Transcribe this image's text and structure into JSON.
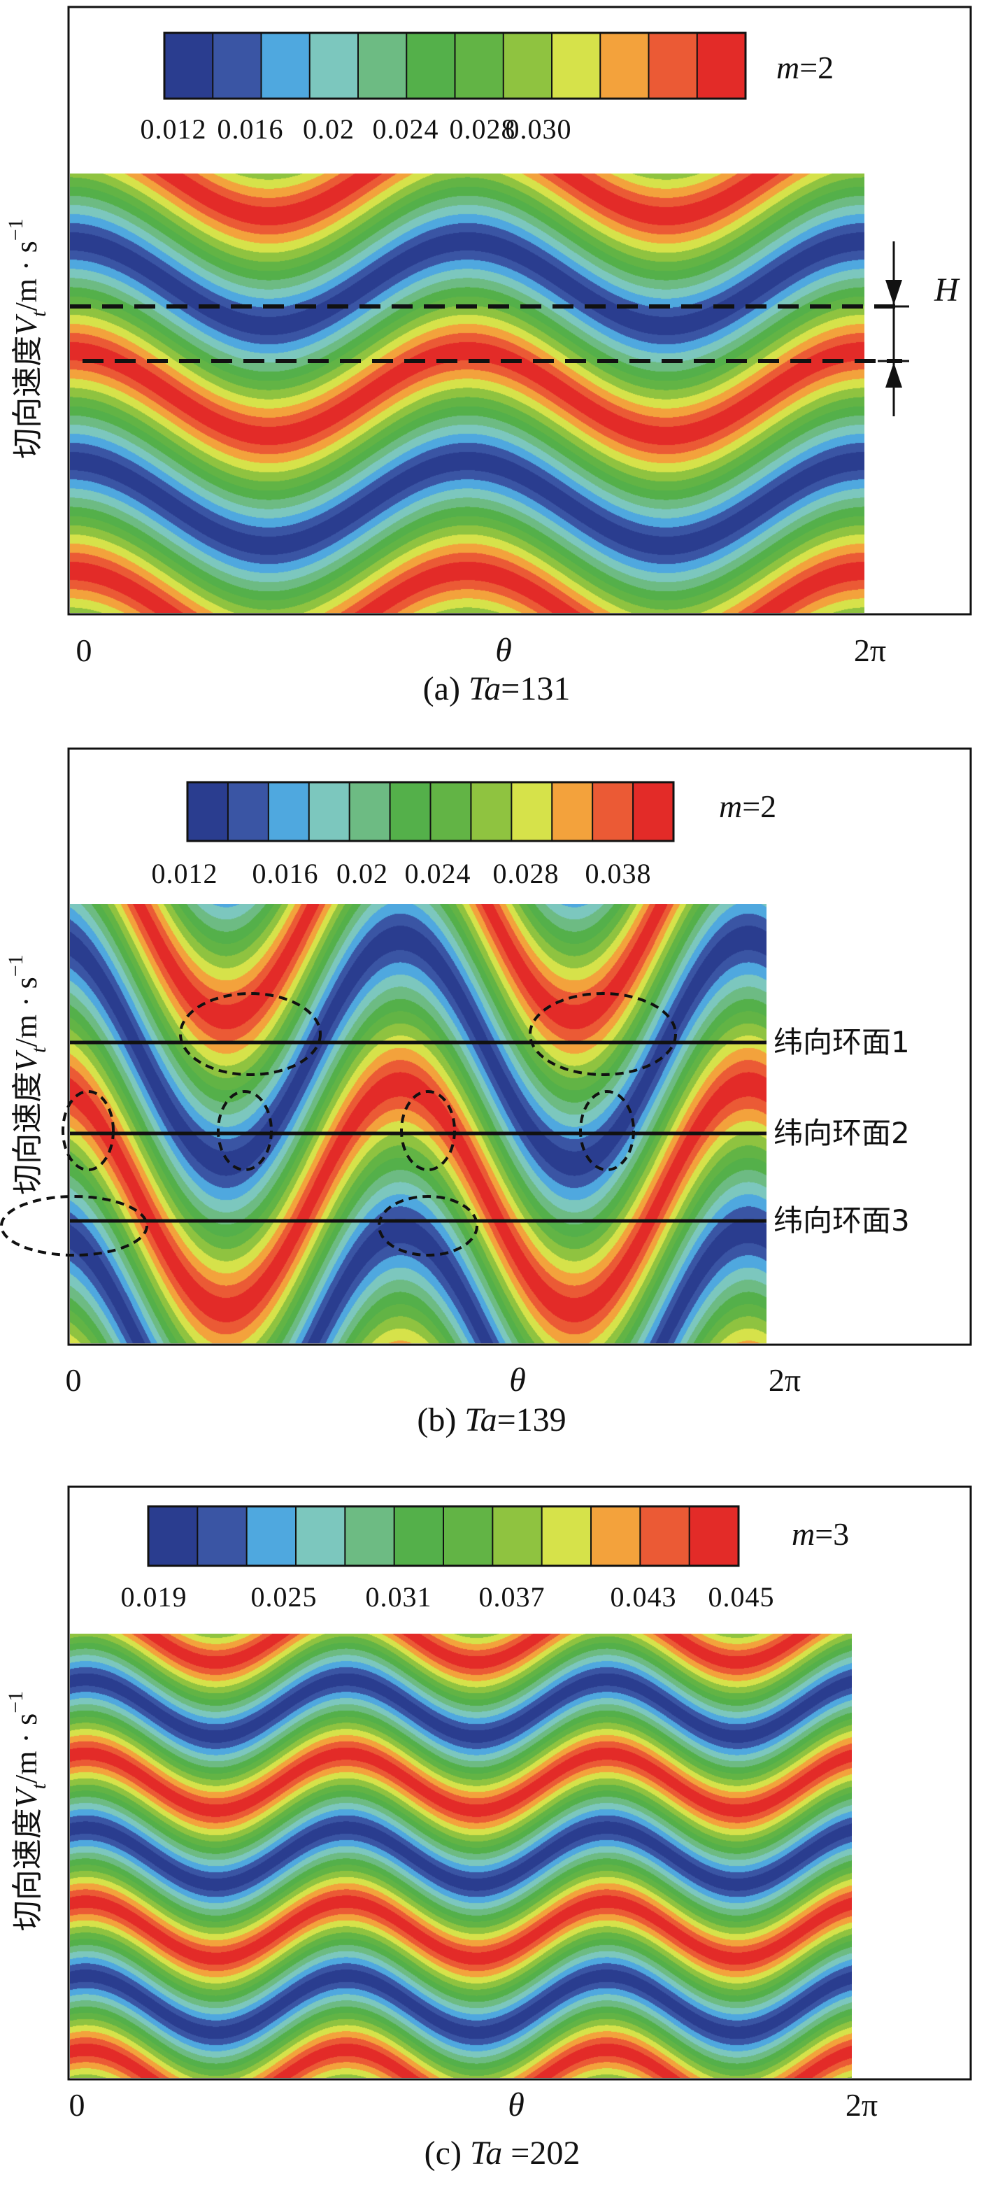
{
  "colors": [
    "#2a3d8f",
    "#3a55a4",
    "#4fa8df",
    "#7cc7be",
    "#6dbb83",
    "#54b04a",
    "#62b445",
    "#8fc340",
    "#d6e24a",
    "#f3a23c",
    "#eb5a35",
    "#e32b28"
  ],
  "chart_data": [
    {
      "type": "heatmap",
      "panel": "a",
      "title": "m=2",
      "mode_label": "m=2",
      "caption_prefix": "(a) ",
      "caption_ta": "Ta",
      "caption_rest": "=131",
      "colorbar": {
        "min": 0.012,
        "max": 0.03,
        "tick_labels": [
          "0.012",
          "0.016",
          "0.02",
          "0.024",
          "0.028",
          "0.030"
        ]
      },
      "ylabel": "切向速度V_t/m·s⁻¹",
      "xlabel": "θ",
      "x_tick_labels": [
        "0",
        "2π"
      ],
      "wave": {
        "azimuthal_mode": 2,
        "bands": 2.0,
        "amplitude": 0.55,
        "phase": 1.5708
      },
      "annotations": {
        "height_label": "H"
      }
    },
    {
      "type": "heatmap",
      "panel": "b",
      "title": "m=2",
      "mode_label": "m=2",
      "caption_prefix": "(b) ",
      "caption_ta": "Ta",
      "caption_rest": "=139",
      "colorbar": {
        "min": 0.012,
        "max": 0.038,
        "tick_labels": [
          "0.012",
          "0.016",
          "0.02",
          "0.024",
          "0.028",
          "0.038"
        ]
      },
      "ylabel": "切向速度V_t/m·s⁻¹",
      "xlabel": "θ",
      "x_tick_labels": [
        "0",
        "2π"
      ],
      "wave": {
        "azimuthal_mode": 2,
        "bands": 1.5,
        "amplitude": 1.1,
        "phase": 1.9
      },
      "annotations": {
        "line_labels": [
          "纬向环面1",
          "纬向环面2",
          "纬向环面3"
        ]
      }
    },
    {
      "type": "heatmap",
      "panel": "c",
      "title": "m=3",
      "mode_label": "m=3",
      "caption_prefix": "(c) ",
      "caption_ta": "Ta",
      "caption_rest": " =202",
      "colorbar": {
        "min": 0.019,
        "max": 0.045,
        "tick_labels": [
          "0.019",
          "0.025",
          "0.031",
          "0.037",
          "0.043",
          "0.045"
        ]
      },
      "ylabel": "切向速度V_t/m·s⁻¹",
      "xlabel": "θ",
      "x_tick_labels": [
        "0",
        "2π"
      ],
      "wave": {
        "azimuthal_mode": 3,
        "bands": 3.0,
        "amplitude": 0.55,
        "phase": 1.2
      },
      "annotations": {}
    }
  ]
}
